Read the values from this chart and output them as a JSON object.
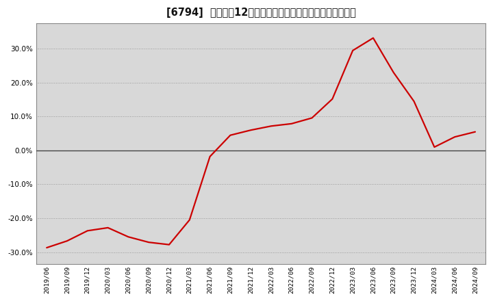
{
  "title": "[6794]  売上高の12か月移動合計の対前年同期増減率の推移",
  "line_color": "#cc0000",
  "background_color": "#ffffff",
  "plot_bg_color": "#d8d8d8",
  "grid_color": "#999999",
  "zero_line_color": "#444444",
  "ylim": [
    -0.335,
    0.375
  ],
  "yticks": [
    -0.3,
    -0.2,
    -0.1,
    0.0,
    0.1,
    0.2,
    0.3
  ],
  "dates": [
    "2019/06",
    "2019/09",
    "2019/12",
    "2020/03",
    "2020/06",
    "2020/09",
    "2020/12",
    "2021/03",
    "2021/06",
    "2021/09",
    "2021/12",
    "2022/03",
    "2022/06",
    "2022/09",
    "2022/12",
    "2023/03",
    "2023/06",
    "2023/09",
    "2023/12",
    "2024/03",
    "2024/06",
    "2024/09"
  ],
  "values": [
    -0.287,
    -0.267,
    -0.237,
    -0.228,
    -0.255,
    -0.271,
    -0.278,
    -0.205,
    -0.018,
    0.045,
    0.06,
    0.072,
    0.079,
    0.096,
    0.152,
    0.295,
    0.332,
    0.23,
    0.145,
    0.01,
    0.04,
    0.055
  ],
  "title_fontsize": 10.5,
  "tick_fontsize": 7.5,
  "x_tick_fontsize": 6.8,
  "line_width": 1.6,
  "figsize": [
    7.2,
    4.4
  ],
  "dpi": 100
}
